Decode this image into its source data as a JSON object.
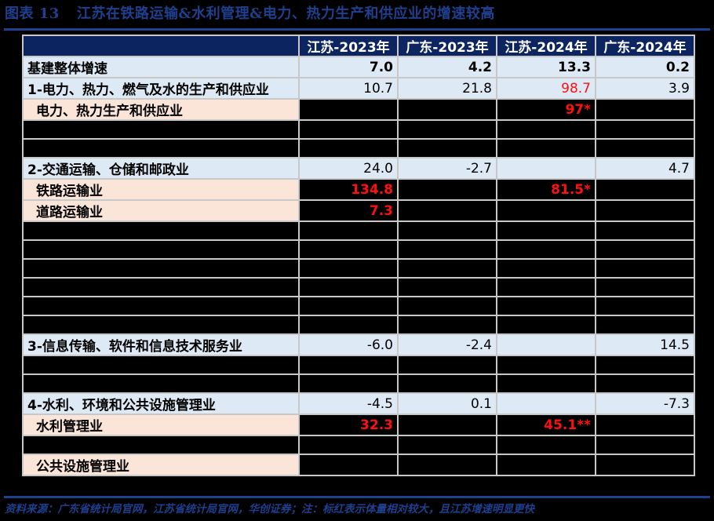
{
  "title": {
    "prefix": "图表 13",
    "text": "江苏在铁路运输&水利管理&电力、热力生产和供应业的增速较高"
  },
  "colors": {
    "brand_blue": "#1f3f8f",
    "header_bg": "#0c2460",
    "main_row_bg": "#dde9f5",
    "sub_row_bg": "#fbe4d8",
    "highlight_red": "#ff1010"
  },
  "table": {
    "columns": [
      "",
      "江苏-2023年",
      "广东-2023年",
      "江苏-2024年",
      "广东-2024年"
    ],
    "rows": [
      {
        "type": "main",
        "label": "基建整体增速",
        "values": [
          "7.0",
          "4.2",
          "13.3",
          "0.2"
        ],
        "style": [
          "bold",
          "bold",
          "bold",
          "bold"
        ]
      },
      {
        "type": "main",
        "label": "1-电力、热力、燃气及水的生产和供应业",
        "values": [
          "10.7",
          "21.8",
          "98.7",
          "3.9"
        ],
        "style": [
          "",
          "",
          "red",
          ""
        ]
      },
      {
        "type": "sub",
        "label": "电力、热力生产和供应业",
        "values": [
          "",
          "",
          "97*",
          ""
        ],
        "style": [
          "",
          "",
          "redbold",
          ""
        ]
      },
      {
        "type": "blank",
        "label": "",
        "values": [
          "",
          "",
          "",
          ""
        ],
        "style": [
          "",
          "",
          "",
          ""
        ]
      },
      {
        "type": "blank",
        "label": "",
        "values": [
          "",
          "",
          "",
          ""
        ],
        "style": [
          "",
          "",
          "",
          ""
        ]
      },
      {
        "type": "main",
        "label": "2-交通运输、仓储和邮政业",
        "values": [
          "24.0",
          "-2.7",
          "",
          "4.7"
        ],
        "style": [
          "",
          "",
          "",
          ""
        ]
      },
      {
        "type": "sub",
        "label": "铁路运输业",
        "values": [
          "134.8",
          "",
          "81.5*",
          ""
        ],
        "style": [
          "redbold",
          "",
          "redbold",
          ""
        ]
      },
      {
        "type": "sub",
        "label": "道路运输业",
        "values": [
          "7.3",
          "",
          "",
          ""
        ],
        "style": [
          "redbold",
          "",
          "",
          ""
        ]
      },
      {
        "type": "blank",
        "label": "",
        "values": [
          "",
          "",
          "",
          ""
        ],
        "style": [
          "",
          "",
          "",
          ""
        ]
      },
      {
        "type": "blank",
        "label": "",
        "values": [
          "",
          "",
          "",
          ""
        ],
        "style": [
          "",
          "",
          "",
          ""
        ]
      },
      {
        "type": "blank",
        "label": "",
        "values": [
          "",
          "",
          "",
          ""
        ],
        "style": [
          "",
          "",
          "",
          ""
        ]
      },
      {
        "type": "blank",
        "label": "",
        "values": [
          "",
          "",
          "",
          ""
        ],
        "style": [
          "",
          "",
          "",
          ""
        ]
      },
      {
        "type": "blank",
        "label": "",
        "values": [
          "",
          "",
          "",
          ""
        ],
        "style": [
          "",
          "",
          "",
          ""
        ]
      },
      {
        "type": "blank",
        "label": "",
        "values": [
          "",
          "",
          "",
          ""
        ],
        "style": [
          "",
          "",
          "",
          ""
        ]
      },
      {
        "type": "main",
        "label": "3-信息传输、软件和信息技术服务业",
        "values": [
          "-6.0",
          "-2.4",
          "",
          "14.5"
        ],
        "style": [
          "",
          "",
          "",
          ""
        ]
      },
      {
        "type": "blank",
        "label": "",
        "values": [
          "",
          "",
          "",
          ""
        ],
        "style": [
          "",
          "",
          "",
          ""
        ]
      },
      {
        "type": "blank",
        "label": "",
        "values": [
          "",
          "",
          "",
          ""
        ],
        "style": [
          "",
          "",
          "",
          ""
        ]
      },
      {
        "type": "main",
        "label": "4-水利、环境和公共设施管理业",
        "values": [
          "-4.5",
          "0.1",
          "",
          "-7.3"
        ],
        "style": [
          "",
          "",
          "",
          ""
        ]
      },
      {
        "type": "sub",
        "label": "水利管理业",
        "values": [
          "32.3",
          "",
          "45.1**",
          ""
        ],
        "style": [
          "redbold",
          "",
          "redbold",
          ""
        ]
      },
      {
        "type": "blank",
        "label": "",
        "values": [
          "",
          "",
          "",
          ""
        ],
        "style": [
          "",
          "",
          "",
          ""
        ]
      },
      {
        "type": "sub",
        "label": "公共设施管理业",
        "values": [
          "",
          "",
          "",
          ""
        ],
        "style": [
          "",
          "",
          "",
          ""
        ]
      }
    ]
  },
  "source": "资料来源：广东省统计局官网，江苏省统计局官网，华创证券；注：标红表示体量相对较大，且江苏增速明显更快"
}
